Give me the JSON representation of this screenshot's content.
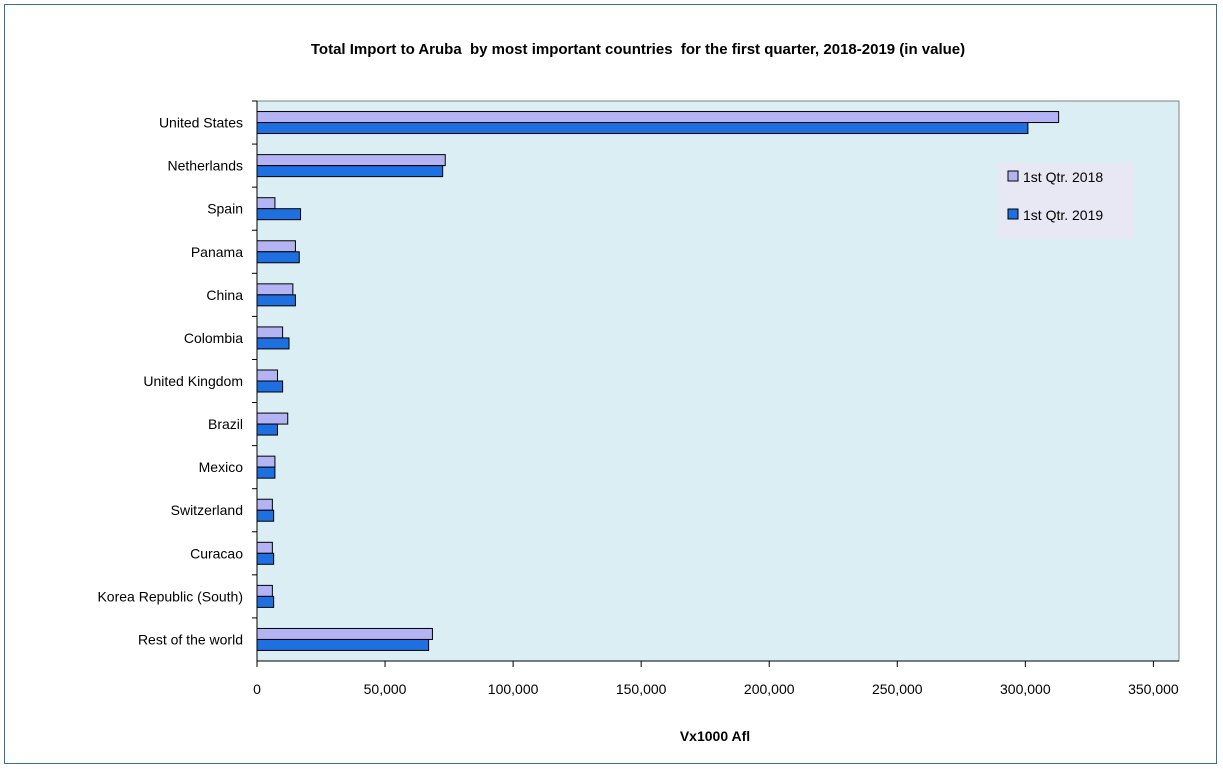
{
  "chart_data": {
    "type": "bar",
    "orientation": "horizontal",
    "title": "Total Import to Aruba  by most important countries  for the first quarter, 2018-2019 (in value)",
    "xlabel": "Vx1000 Afl",
    "ylabel": "",
    "xlim": [
      0,
      360000
    ],
    "xticks": [
      0,
      50000,
      100000,
      150000,
      200000,
      250000,
      300000,
      350000
    ],
    "xtick_labels": [
      "0",
      "50,000",
      "100,000",
      "150,000",
      "200,000",
      "250,000",
      "300,000",
      "350,000"
    ],
    "grid": false,
    "legend_position": "top-right",
    "plot_background": "#daeef3",
    "categories": [
      "United States",
      "Netherlands",
      "Spain",
      "Panama",
      "China",
      "Colombia",
      "United Kingdom",
      "Brazil",
      "Mexico",
      "Switzerland",
      "Curacao",
      "Korea Republic (South)",
      "Rest of the world"
    ],
    "series": [
      {
        "name": "1st Qtr. 2018",
        "color": "#b4b4f4",
        "values": [
          313000,
          73500,
          7000,
          15000,
          14000,
          10000,
          8000,
          12000,
          7000,
          6000,
          6000,
          6000,
          68500
        ]
      },
      {
        "name": "1st Qtr. 2019",
        "color": "#1e6fe0",
        "values": [
          301000,
          72500,
          17000,
          16500,
          15000,
          12500,
          10000,
          8000,
          7000,
          6500,
          6500,
          6500,
          67000
        ]
      }
    ]
  }
}
